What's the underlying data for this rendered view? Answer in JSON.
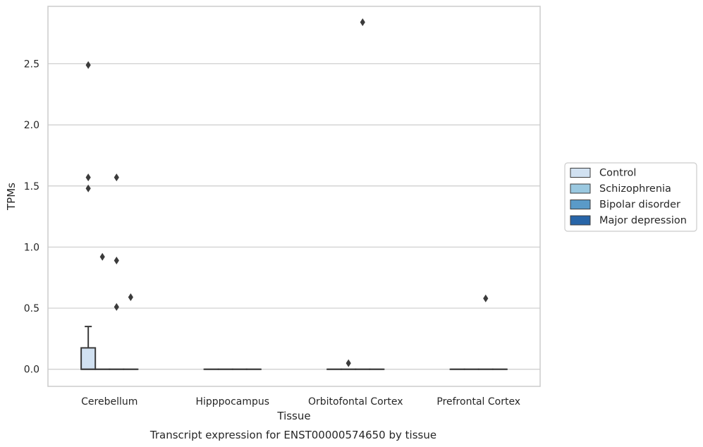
{
  "chart_data": {
    "type": "box",
    "xlabel": "Tissue",
    "ylabel": "TPMs",
    "caption": "Transcript expression for ENST00000574650 by tissue",
    "categories": [
      "Cerebellum",
      "Hipppocampus",
      "Orbitofontal Cortex",
      "Prefrontal Cortex"
    ],
    "ylim": [
      -0.14,
      2.97
    ],
    "yticks": [
      0.0,
      0.5,
      1.0,
      1.5,
      2.0,
      2.5
    ],
    "ytick_labels": [
      "0.0",
      "0.5",
      "1.0",
      "1.5",
      "2.0",
      "2.5"
    ],
    "grid": "horizontal",
    "legend_position": "right",
    "series": [
      {
        "name": "Control",
        "color": "#d1e1f1",
        "boxes": [
          {
            "q1": 0.0,
            "median": 0.0,
            "q3": 0.175,
            "whisker_low": 0.0,
            "whisker_high": 0.35,
            "outliers": [
              2.49,
              1.57,
              1.48
            ]
          },
          {
            "q1": 0.0,
            "median": 0.0,
            "q3": 0.0,
            "whisker_low": 0.0,
            "whisker_high": 0.0,
            "outliers": []
          },
          {
            "q1": 0.0,
            "median": 0.0,
            "q3": 0.0,
            "whisker_low": 0.0,
            "whisker_high": 0.0,
            "outliers": []
          },
          {
            "q1": 0.0,
            "median": 0.0,
            "q3": 0.0,
            "whisker_low": 0.0,
            "whisker_high": 0.0,
            "outliers": []
          }
        ]
      },
      {
        "name": "Schizophrenia",
        "color": "#9ac8e0",
        "boxes": [
          {
            "q1": 0.0,
            "median": 0.0,
            "q3": 0.0,
            "whisker_low": 0.0,
            "whisker_high": 0.0,
            "outliers": [
              0.92
            ]
          },
          {
            "q1": 0.0,
            "median": 0.0,
            "q3": 0.0,
            "whisker_low": 0.0,
            "whisker_high": 0.0,
            "outliers": []
          },
          {
            "q1": 0.0,
            "median": 0.0,
            "q3": 0.0,
            "whisker_low": 0.0,
            "whisker_high": 0.0,
            "outliers": [
              0.05
            ]
          },
          {
            "q1": 0.0,
            "median": 0.0,
            "q3": 0.0,
            "whisker_low": 0.0,
            "whisker_high": 0.0,
            "outliers": []
          }
        ]
      },
      {
        "name": "Bipolar disorder",
        "color": "#5a9ac8",
        "boxes": [
          {
            "q1": 0.0,
            "median": 0.0,
            "q3": 0.0,
            "whisker_low": 0.0,
            "whisker_high": 0.0,
            "outliers": [
              1.57,
              0.89,
              0.51
            ]
          },
          {
            "q1": 0.0,
            "median": 0.0,
            "q3": 0.0,
            "whisker_low": 0.0,
            "whisker_high": 0.0,
            "outliers": []
          },
          {
            "q1": 0.0,
            "median": 0.0,
            "q3": 0.0,
            "whisker_low": 0.0,
            "whisker_high": 0.0,
            "outliers": [
              2.84
            ]
          },
          {
            "q1": 0.0,
            "median": 0.0,
            "q3": 0.0,
            "whisker_low": 0.0,
            "whisker_high": 0.0,
            "outliers": [
              0.58
            ]
          }
        ]
      },
      {
        "name": "Major depression",
        "color": "#2865a8",
        "boxes": [
          {
            "q1": 0.0,
            "median": 0.0,
            "q3": 0.0,
            "whisker_low": 0.0,
            "whisker_high": 0.0,
            "outliers": [
              0.59
            ]
          },
          {
            "q1": 0.0,
            "median": 0.0,
            "q3": 0.0,
            "whisker_low": 0.0,
            "whisker_high": 0.0,
            "outliers": []
          },
          {
            "q1": 0.0,
            "median": 0.0,
            "q3": 0.0,
            "whisker_low": 0.0,
            "whisker_high": 0.0,
            "outliers": []
          },
          {
            "q1": 0.0,
            "median": 0.0,
            "q3": 0.0,
            "whisker_low": 0.0,
            "whisker_high": 0.0,
            "outliers": []
          }
        ]
      }
    ],
    "colors": {
      "grid": "#cccccc",
      "frame": "#cccccc",
      "edge": "#3b3b3b"
    }
  }
}
